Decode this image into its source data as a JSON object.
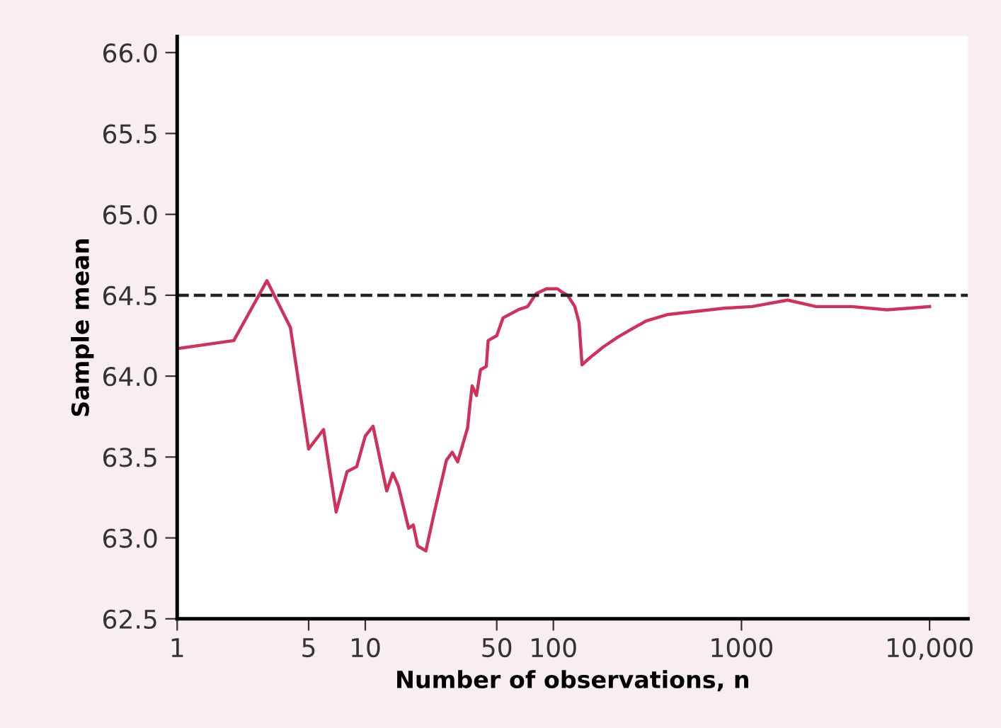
{
  "chart_data": {
    "type": "line",
    "xlabel": "Number of observations, n",
    "ylabel": "Sample mean",
    "log": "x",
    "xlim": [
      1,
      16000
    ],
    "xticks": [
      1,
      5,
      10,
      50,
      100,
      1000,
      {
        "value": 10000,
        "label": "10,000"
      }
    ],
    "ylim": [
      62.5,
      66.1
    ],
    "yticks": [
      {
        "value": 62.5,
        "label": "62.5"
      },
      {
        "value": 63.0,
        "label": "63.0"
      },
      {
        "value": 63.5,
        "label": "63.5"
      },
      {
        "value": 64.0,
        "label": "64.0"
      },
      {
        "value": 64.5,
        "label": "64.5"
      },
      {
        "value": 65.0,
        "label": "65.0"
      },
      {
        "value": 65.5,
        "label": "65.5"
      },
      {
        "value": 66.0,
        "label": "66.0"
      }
    ],
    "grid": false,
    "legend": false,
    "marker": "none",
    "line_style": "solid",
    "ref_lines": [
      {
        "axis": "y",
        "value": 64.5,
        "color": "#222222",
        "line_style": "dashed"
      }
    ],
    "series": [
      {
        "color": "#d0305a",
        "x": [
          1,
          2,
          3,
          4,
          5,
          6,
          7,
          8,
          9,
          10,
          11,
          13,
          14,
          15,
          17,
          18,
          19,
          21,
          23,
          27,
          29,
          31,
          35,
          36,
          37,
          39,
          41,
          44,
          45,
          50,
          54,
          65,
          73,
          81,
          92,
          105,
          111,
          119,
          130,
          137,
          142,
          155,
          184,
          219,
          260,
          310,
          402,
          569,
          805,
          1140,
          1760,
          2490,
          3850,
          5940,
          10000
        ],
        "values": [
          64.17,
          64.22,
          64.59,
          64.3,
          63.55,
          63.67,
          63.16,
          63.41,
          63.44,
          63.63,
          63.69,
          63.29,
          63.4,
          63.32,
          63.06,
          63.08,
          62.95,
          62.92,
          63.13,
          63.48,
          63.53,
          63.47,
          63.68,
          63.82,
          63.94,
          63.88,
          64.04,
          64.06,
          64.22,
          64.25,
          64.36,
          64.41,
          64.43,
          64.51,
          64.54,
          64.54,
          64.52,
          64.5,
          64.43,
          64.33,
          64.07,
          64.11,
          64.18,
          64.24,
          64.29,
          64.34,
          64.38,
          64.4,
          64.42,
          64.43,
          64.47,
          64.43,
          64.43,
          64.41,
          64.43
        ]
      }
    ]
  }
}
